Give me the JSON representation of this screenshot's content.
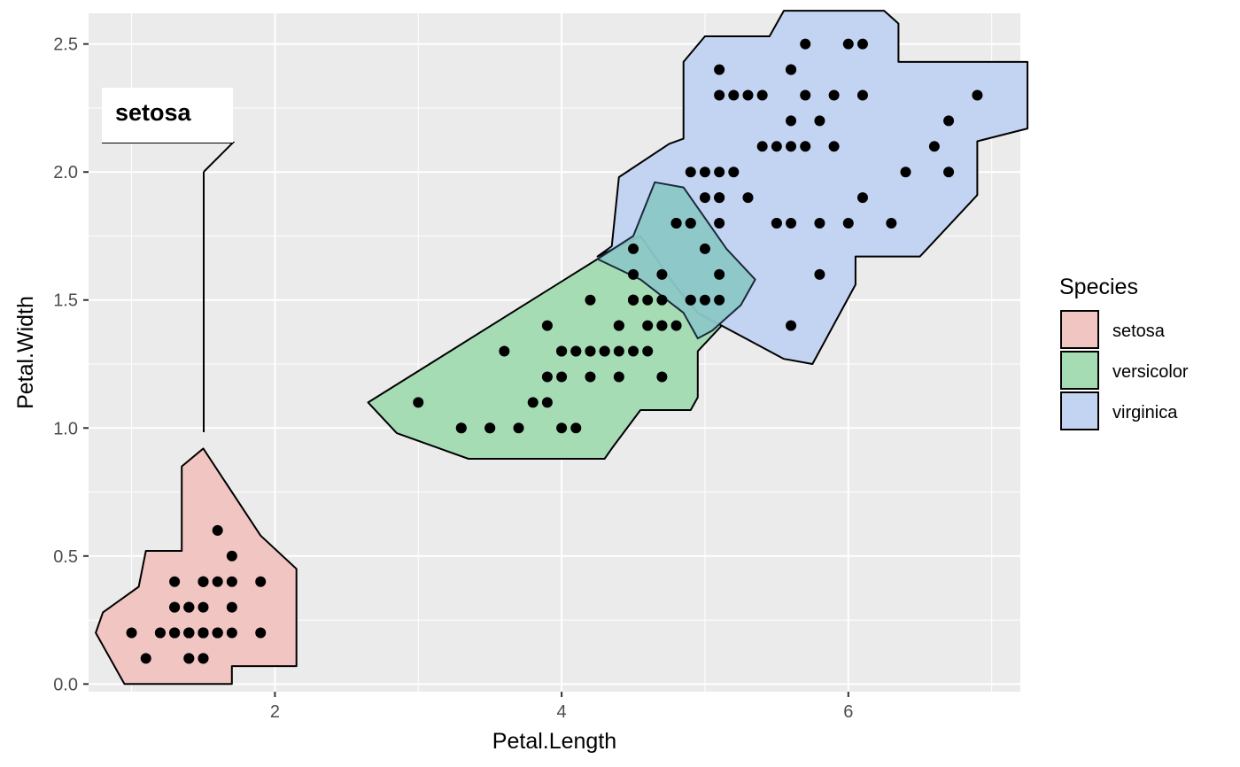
{
  "chart_data": {
    "type": "scatter",
    "xlabel": "Petal.Length",
    "ylabel": "Petal.Width",
    "xlim": [
      0.7,
      7.2
    ],
    "ylim": [
      -0.03,
      2.62
    ],
    "x_ticks": [
      2,
      4,
      6
    ],
    "y_ticks": [
      0.0,
      0.5,
      1.0,
      1.5,
      2.0,
      2.5
    ],
    "x_tick_labels": [
      "2",
      "4",
      "6"
    ],
    "y_tick_labels": [
      "0.0",
      "0.5",
      "1.0",
      "1.5",
      "2.0",
      "2.5"
    ],
    "grid": true,
    "panel_background": "#ebebeb",
    "legend": {
      "title": "Species",
      "position": "right",
      "entries": [
        "setosa",
        "versicolor",
        "virginica"
      ]
    },
    "colors": {
      "setosa": "#f0c5c2",
      "versicolor": "#a5dcb4",
      "virginica": "#c3d3f2",
      "points": "#000000",
      "hull_stroke": "#000000"
    },
    "annotations": [
      {
        "text": "setosa",
        "group": "setosa"
      }
    ],
    "hulls": [
      {
        "name": "setosa",
        "polygon": [
          [
            0.75,
            0.2
          ],
          [
            0.95,
            0.0
          ],
          [
            1.7,
            0.0
          ],
          [
            1.7,
            0.07
          ],
          [
            2.15,
            0.07
          ],
          [
            2.15,
            0.45
          ],
          [
            1.9,
            0.58
          ],
          [
            1.5,
            0.92
          ],
          [
            1.35,
            0.85
          ],
          [
            1.35,
            0.52
          ],
          [
            1.1,
            0.52
          ],
          [
            1.05,
            0.38
          ],
          [
            0.8,
            0.28
          ]
        ]
      },
      {
        "name": "versicolor",
        "polygon": [
          [
            2.65,
            1.1
          ],
          [
            2.85,
            0.98
          ],
          [
            3.35,
            0.88
          ],
          [
            4.3,
            0.88
          ],
          [
            4.35,
            0.92
          ],
          [
            4.55,
            1.07
          ],
          [
            4.9,
            1.07
          ],
          [
            4.95,
            1.12
          ],
          [
            4.95,
            1.3
          ],
          [
            5.2,
            1.45
          ],
          [
            5.15,
            1.6
          ],
          [
            4.85,
            1.75
          ],
          [
            4.5,
            1.75
          ],
          [
            4.25,
            1.66
          ]
        ]
      },
      {
        "name": "virginica",
        "polygon": [
          [
            4.25,
            1.67
          ],
          [
            4.35,
            1.71
          ],
          [
            4.4,
            1.98
          ],
          [
            4.75,
            2.11
          ],
          [
            4.85,
            2.13
          ],
          [
            4.85,
            2.43
          ],
          [
            5.0,
            2.53
          ],
          [
            5.45,
            2.53
          ],
          [
            5.55,
            2.63
          ],
          [
            6.25,
            2.63
          ],
          [
            6.35,
            2.58
          ],
          [
            6.35,
            2.43
          ],
          [
            7.25,
            2.43
          ],
          [
            7.25,
            2.17
          ],
          [
            6.9,
            2.12
          ],
          [
            6.9,
            1.91
          ],
          [
            6.5,
            1.67
          ],
          [
            6.05,
            1.67
          ],
          [
            6.05,
            1.56
          ],
          [
            5.75,
            1.25
          ],
          [
            5.55,
            1.27
          ],
          [
            4.95,
            1.45
          ],
          [
            4.8,
            1.55
          ],
          [
            4.55,
            1.75
          ]
        ]
      },
      {
        "name": "versicolor-overlap",
        "polygon": [
          [
            4.25,
            1.66
          ],
          [
            4.5,
            1.75
          ],
          [
            4.65,
            1.96
          ],
          [
            4.85,
            1.94
          ],
          [
            5.15,
            1.7
          ],
          [
            5.35,
            1.58
          ],
          [
            5.25,
            1.48
          ],
          [
            5.05,
            1.38
          ],
          [
            4.95,
            1.35
          ],
          [
            4.85,
            1.45
          ],
          [
            4.55,
            1.58
          ]
        ]
      }
    ],
    "series": [
      {
        "name": "setosa",
        "x": [
          1.4,
          1.4,
          1.3,
          1.5,
          1.4,
          1.7,
          1.4,
          1.5,
          1.4,
          1.5,
          1.5,
          1.6,
          1.4,
          1.1,
          1.2,
          1.5,
          1.3,
          1.4,
          1.7,
          1.5,
          1.7,
          1.5,
          1.0,
          1.7,
          1.9,
          1.6,
          1.6,
          1.5,
          1.4,
          1.6,
          1.6,
          1.5,
          1.5,
          1.4,
          1.5,
          1.2,
          1.3,
          1.4,
          1.3,
          1.5,
          1.3,
          1.3,
          1.3,
          1.6,
          1.9,
          1.4,
          1.6,
          1.4,
          1.5,
          1.4
        ],
        "y": [
          0.2,
          0.2,
          0.2,
          0.2,
          0.2,
          0.4,
          0.3,
          0.2,
          0.2,
          0.1,
          0.2,
          0.2,
          0.1,
          0.1,
          0.2,
          0.4,
          0.4,
          0.3,
          0.3,
          0.3,
          0.2,
          0.4,
          0.2,
          0.5,
          0.2,
          0.2,
          0.4,
          0.2,
          0.2,
          0.2,
          0.2,
          0.4,
          0.1,
          0.2,
          0.2,
          0.2,
          0.2,
          0.1,
          0.2,
          0.2,
          0.3,
          0.3,
          0.2,
          0.6,
          0.4,
          0.3,
          0.2,
          0.2,
          0.2,
          0.2
        ]
      },
      {
        "name": "versicolor",
        "x": [
          4.7,
          4.5,
          4.9,
          4.0,
          4.6,
          4.5,
          4.7,
          3.3,
          4.6,
          3.9,
          3.5,
          4.2,
          4.0,
          4.7,
          3.6,
          4.4,
          4.5,
          4.1,
          4.5,
          3.9,
          4.8,
          4.0,
          4.9,
          4.7,
          4.3,
          4.4,
          4.8,
          5.0,
          4.5,
          3.5,
          3.8,
          3.7,
          3.9,
          5.1,
          4.5,
          4.5,
          4.7,
          4.4,
          4.1,
          4.0,
          4.4,
          4.6,
          4.0,
          3.3,
          4.2,
          4.2,
          4.2,
          4.3,
          3.0,
          4.1
        ],
        "y": [
          1.4,
          1.5,
          1.5,
          1.3,
          1.5,
          1.3,
          1.6,
          1.0,
          1.3,
          1.4,
          1.0,
          1.5,
          1.0,
          1.4,
          1.3,
          1.4,
          1.5,
          1.0,
          1.5,
          1.1,
          1.8,
          1.3,
          1.5,
          1.2,
          1.3,
          1.4,
          1.4,
          1.7,
          1.5,
          1.0,
          1.1,
          1.0,
          1.2,
          1.6,
          1.5,
          1.6,
          1.5,
          1.3,
          1.3,
          1.3,
          1.2,
          1.4,
          1.2,
          1.0,
          1.3,
          1.2,
          1.3,
          1.3,
          1.1,
          1.3
        ]
      },
      {
        "name": "virginica",
        "x": [
          6.0,
          5.1,
          5.9,
          5.6,
          5.8,
          6.6,
          4.5,
          6.3,
          5.8,
          6.1,
          5.1,
          5.3,
          5.5,
          5.0,
          5.1,
          5.3,
          5.5,
          6.7,
          6.9,
          5.0,
          5.7,
          4.9,
          6.7,
          4.9,
          5.7,
          6.0,
          4.8,
          4.9,
          5.6,
          5.8,
          6.1,
          6.4,
          5.6,
          5.1,
          5.6,
          6.1,
          5.6,
          5.5,
          4.8,
          5.4,
          5.6,
          5.1,
          5.1,
          5.9,
          5.7,
          5.2,
          5.0,
          5.2,
          5.4,
          5.1
        ],
        "y": [
          2.5,
          1.9,
          2.1,
          1.8,
          2.2,
          2.1,
          1.7,
          1.8,
          1.8,
          2.5,
          2.0,
          1.9,
          2.1,
          2.0,
          2.4,
          2.3,
          1.8,
          2.2,
          2.3,
          1.5,
          2.3,
          2.0,
          2.0,
          1.8,
          2.1,
          1.8,
          1.8,
          1.8,
          2.1,
          1.6,
          1.9,
          2.0,
          2.2,
          1.5,
          1.4,
          2.3,
          2.4,
          1.8,
          1.8,
          2.1,
          2.4,
          2.3,
          1.9,
          2.3,
          2.5,
          2.3,
          1.9,
          2.0,
          2.3,
          1.8
        ]
      }
    ]
  }
}
